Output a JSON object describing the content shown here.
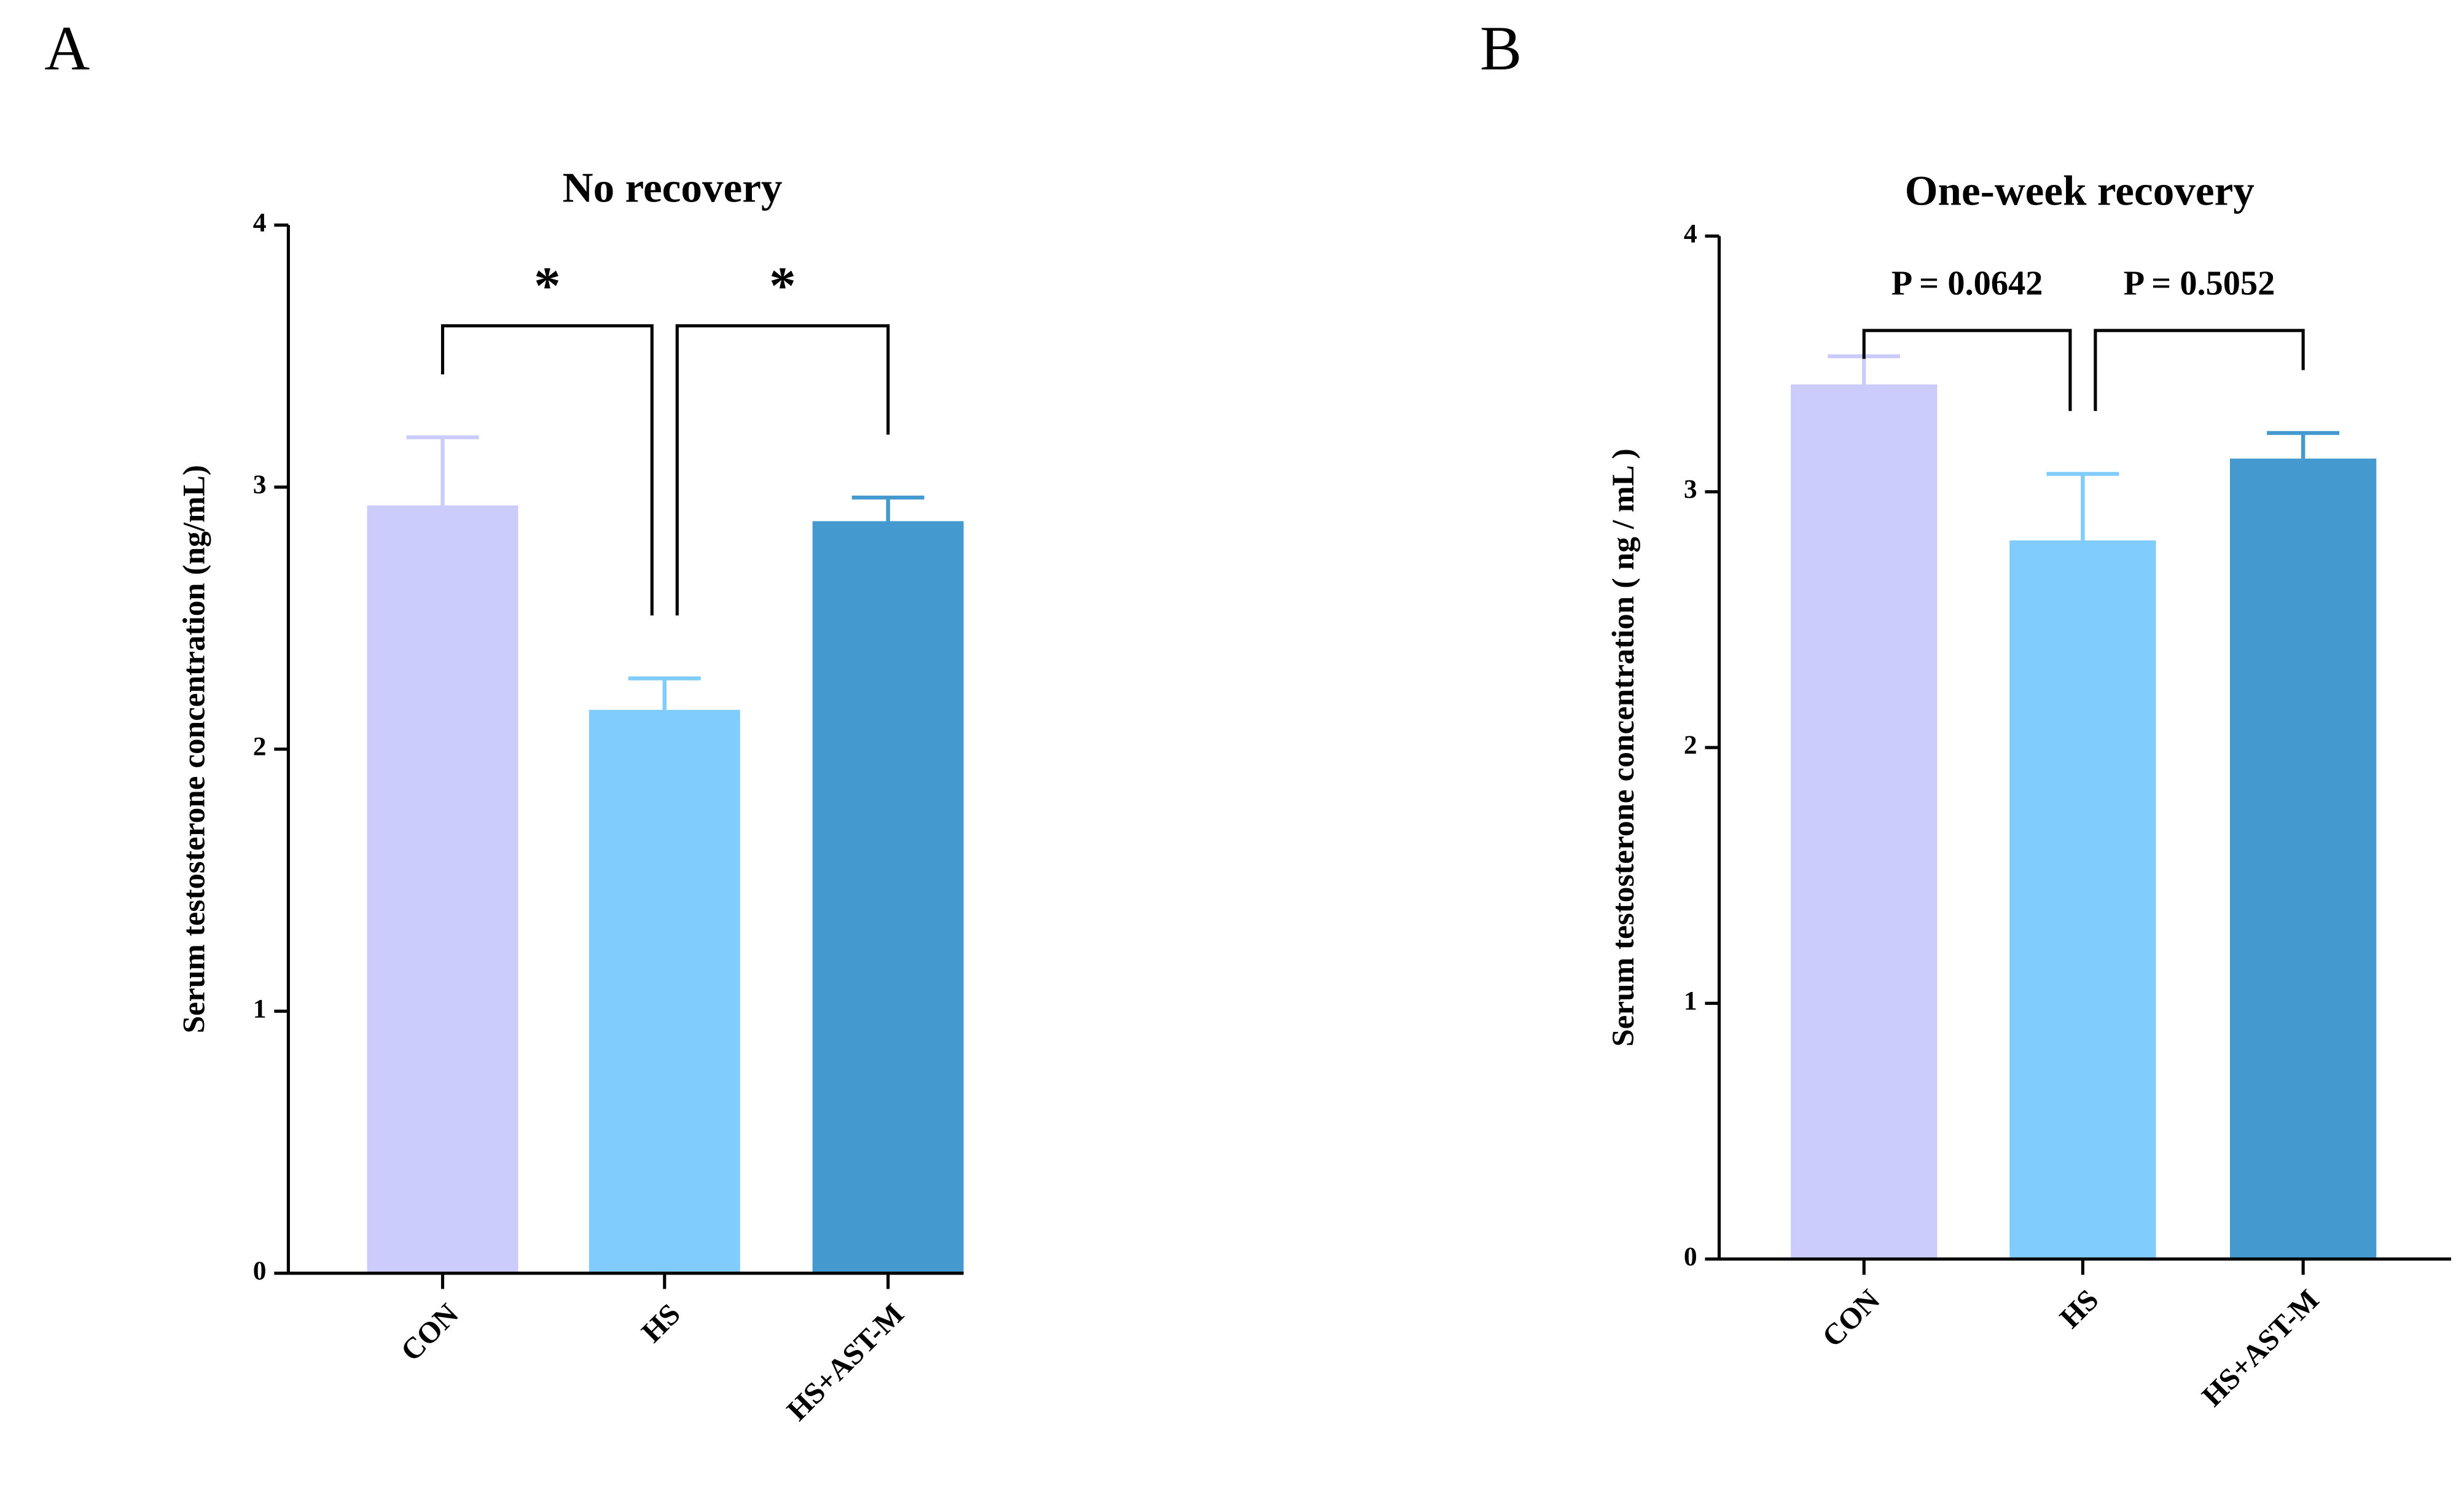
{
  "chart_data": [
    {
      "type": "bar",
      "panel": "A",
      "title": "No recovery",
      "ylabel": "Serum testosterone concentration (ng/mL)",
      "categories": [
        "CON",
        "HS",
        "HS+AST-M"
      ],
      "values": [
        2.93,
        2.15,
        2.87
      ],
      "errors": [
        0.26,
        0.12,
        0.09
      ],
      "colors": [
        "#ccccfc",
        "#80ccfc",
        "#4499cf"
      ],
      "ylim": [
        0,
        4
      ],
      "yticks": [
        0,
        1,
        2,
        3,
        4
      ],
      "comparisons": [
        {
          "label": "*",
          "groups": [
            "CON",
            "HS"
          ]
        },
        {
          "label": "*",
          "groups": [
            "HS",
            "HS+AST-M"
          ]
        }
      ]
    },
    {
      "type": "bar",
      "panel": "B",
      "title": "One-week recovery",
      "ylabel": "Serum testosterone concentration ( ng / mL )",
      "categories": [
        "CON",
        "HS",
        "HS+AST-M"
      ],
      "values": [
        3.42,
        2.81,
        3.13
      ],
      "errors": [
        0.11,
        0.26,
        0.1
      ],
      "colors": [
        "#ccccfc",
        "#80ccfc",
        "#4499cf"
      ],
      "ylim": [
        0,
        4
      ],
      "yticks": [
        0,
        1,
        2,
        3,
        4
      ],
      "comparisons": [
        {
          "label": "P = 0.0642",
          "groups": [
            "CON",
            "HS"
          ]
        },
        {
          "label": "P = 0.5052",
          "groups": [
            "HS",
            "HS+AST-M"
          ]
        }
      ]
    }
  ]
}
